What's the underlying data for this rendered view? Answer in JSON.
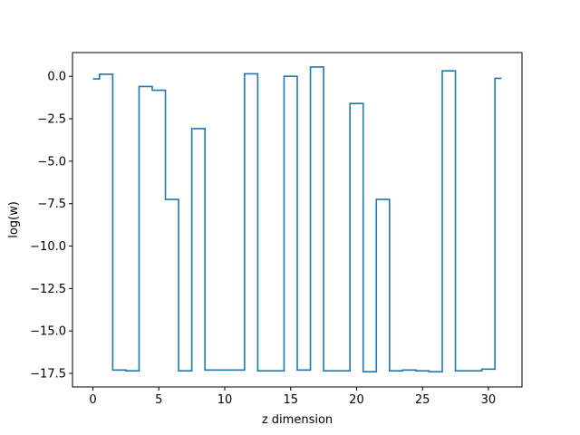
{
  "chart_data": {
    "type": "line",
    "drawstyle": "steps-mid",
    "xlabel": "z dimension",
    "ylabel": "log(w)",
    "xlim": [
      -1.55,
      32.55
    ],
    "ylim": [
      -18.3,
      1.4
    ],
    "xticks": [
      0,
      5,
      10,
      15,
      20,
      25,
      30
    ],
    "xtick_labels": [
      "0",
      "5",
      "10",
      "15",
      "20",
      "25",
      "30"
    ],
    "yticks": [
      0.0,
      -2.5,
      -5.0,
      -7.5,
      -10.0,
      -12.5,
      -15.0,
      -17.5
    ],
    "ytick_labels": [
      "0.0",
      "−2.5",
      "−5.0",
      "−7.5",
      "−10.0",
      "−12.5",
      "−15.0",
      "−17.5"
    ],
    "grid": false,
    "legend": "none",
    "series": [
      {
        "color": "#1f77b4",
        "x": [
          0,
          1,
          2,
          3,
          4,
          5,
          6,
          7,
          8,
          9,
          10,
          11,
          12,
          13,
          14,
          15,
          16,
          17,
          18,
          19,
          20,
          21,
          22,
          23,
          24,
          25,
          26,
          27,
          28,
          29,
          30,
          31
        ],
        "y": [
          -0.15,
          0.12,
          -17.3,
          -17.35,
          -0.6,
          -0.82,
          -7.25,
          -17.35,
          -3.08,
          -17.3,
          -17.3,
          -17.3,
          0.15,
          -17.35,
          -17.35,
          0.0,
          -17.3,
          0.55,
          -17.35,
          -17.35,
          -1.6,
          -17.4,
          -7.25,
          -17.35,
          -17.3,
          -17.35,
          -17.4,
          0.32,
          -17.35,
          -17.35,
          -17.25,
          -0.12
        ]
      }
    ]
  }
}
